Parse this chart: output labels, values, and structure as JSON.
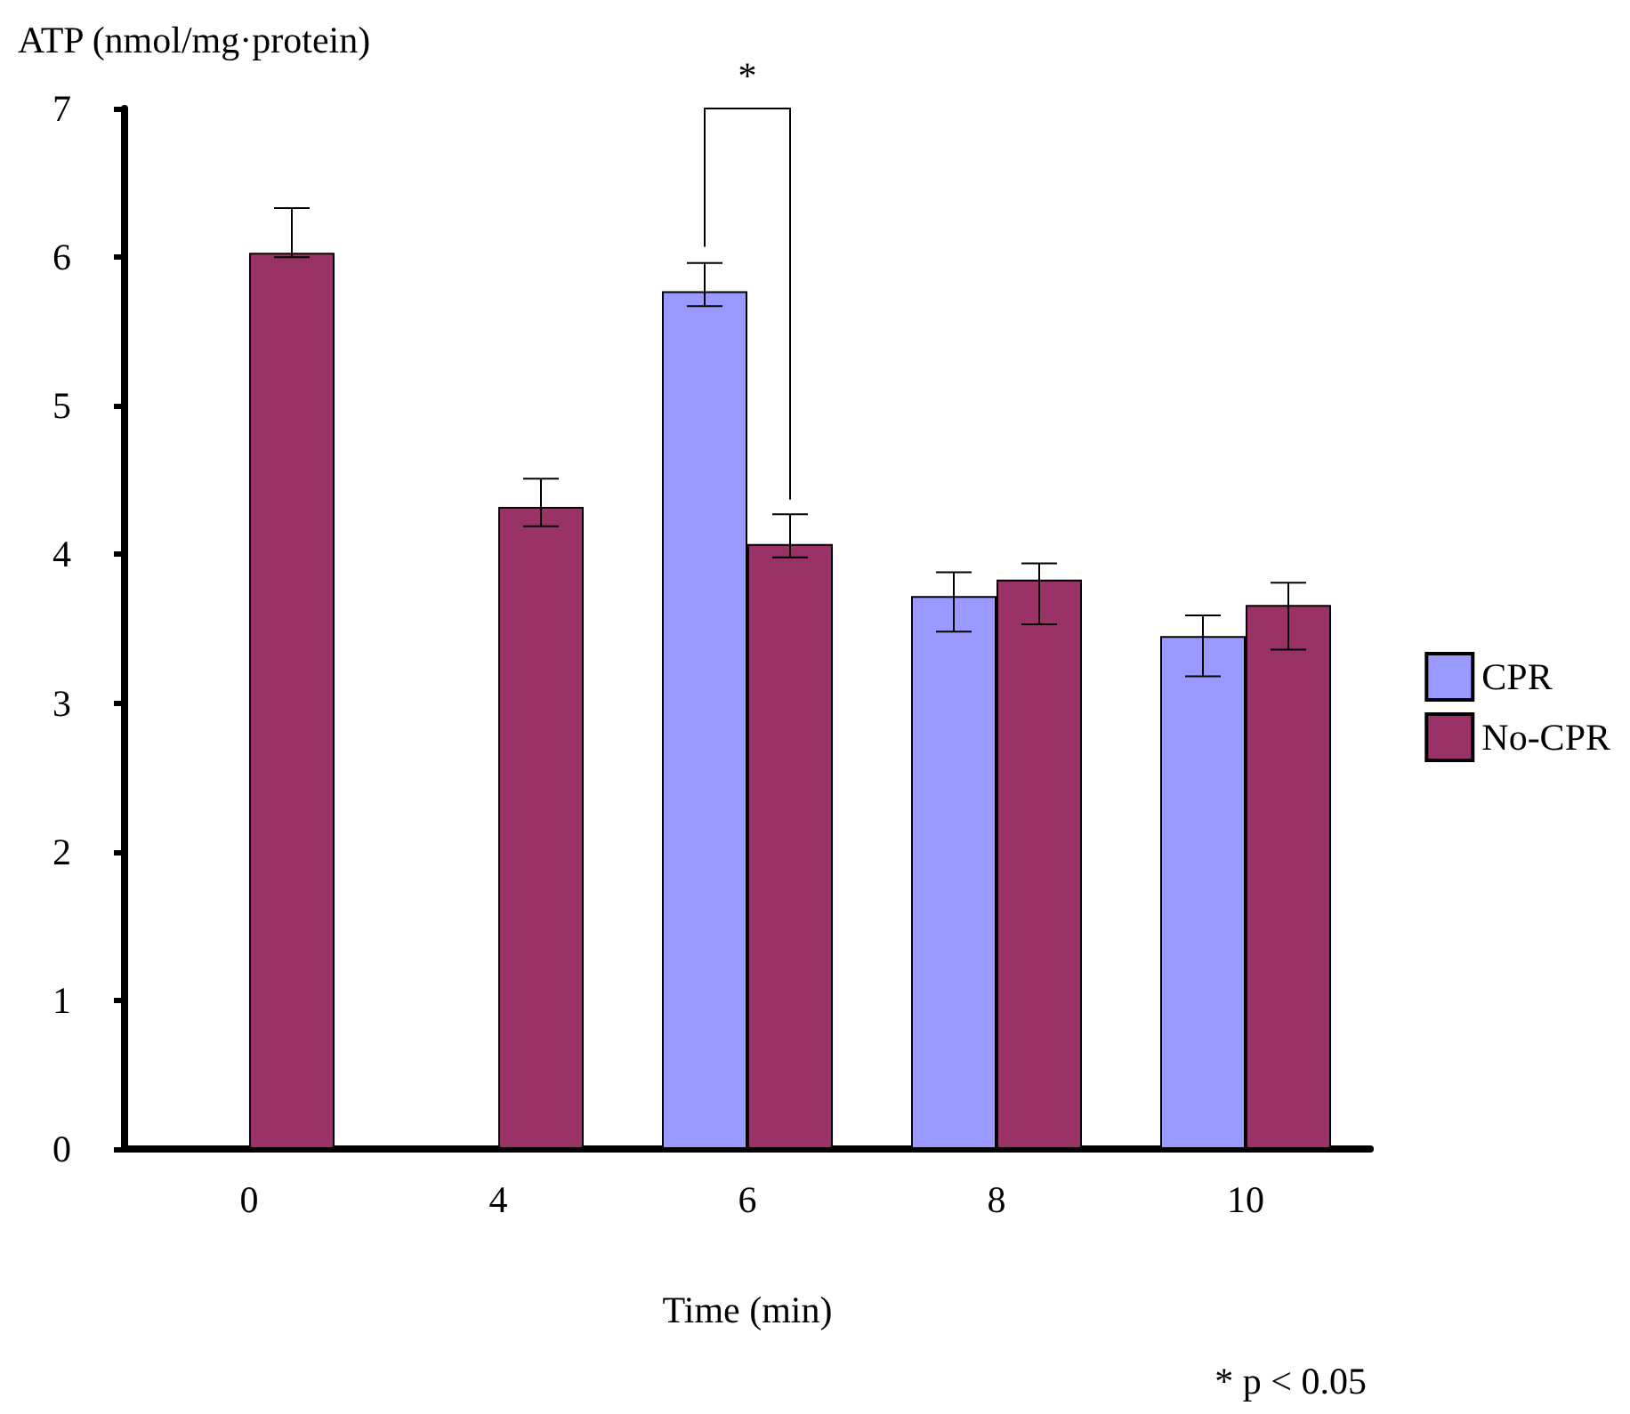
{
  "chart_data": {
    "type": "bar",
    "xlabel": "Time (min)",
    "ylabel": "ATP (nmol/mg·protein)",
    "categories": [
      "0",
      "4",
      "6",
      "8",
      "10"
    ],
    "series": [
      {
        "name": "CPR",
        "color": "#9999ff",
        "values": [
          null,
          null,
          5.77,
          3.72,
          3.45
        ],
        "errors": [
          null,
          null,
          [
            5.67,
            5.96
          ],
          [
            3.48,
            3.88
          ],
          [
            3.18,
            3.59
          ]
        ]
      },
      {
        "name": "No-CPR",
        "color": "#993366",
        "values": [
          6.03,
          4.32,
          4.07,
          3.83,
          3.66
        ],
        "errors": [
          [
            6.0,
            6.33
          ],
          [
            4.19,
            4.51
          ],
          [
            3.98,
            4.27
          ],
          [
            3.53,
            3.94
          ],
          [
            3.36,
            3.81
          ]
        ]
      }
    ],
    "ylim": [
      0,
      7
    ],
    "yticks": [
      0,
      1,
      2,
      3,
      4,
      5,
      6,
      7
    ],
    "grid": false,
    "legend": "right",
    "annotations": [
      "*",
      "* p < 0.05"
    ]
  }
}
